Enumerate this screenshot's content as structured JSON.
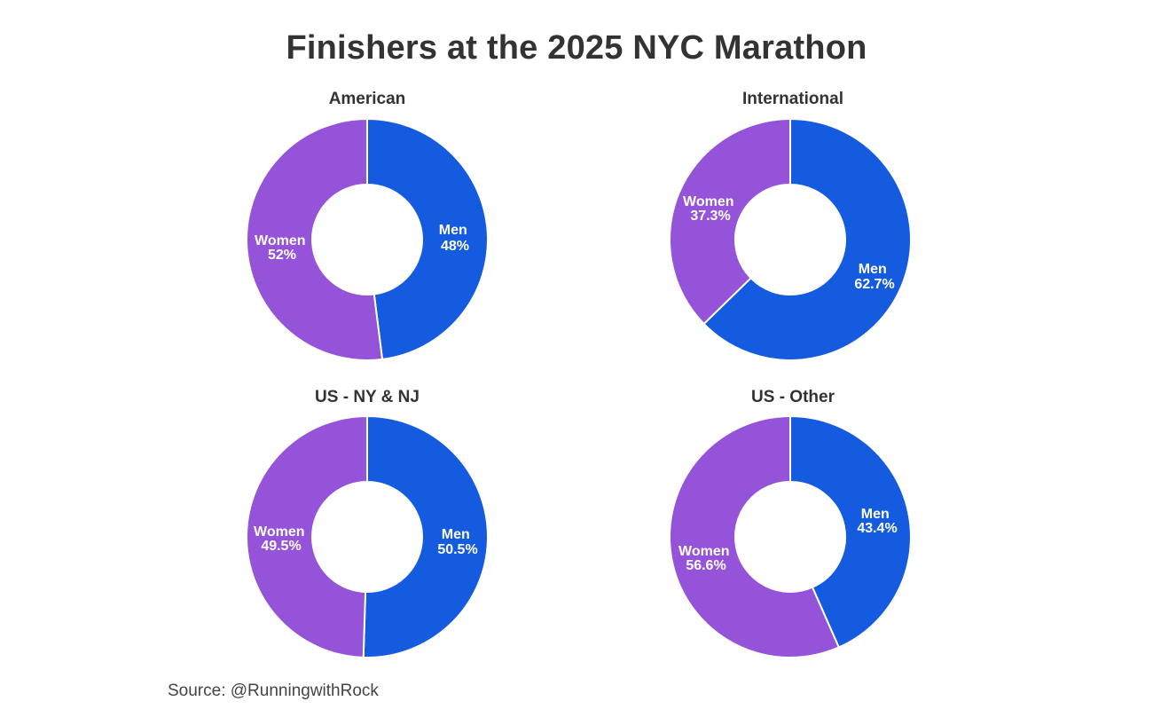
{
  "title": "Finishers at the 2025 NYC Marathon",
  "source": "Source: @RunningwithRock",
  "colors": {
    "men": "#145BE0",
    "women": "#9553D9",
    "text": "#333333",
    "background": "#FFFFFF"
  },
  "chart_data": [
    {
      "type": "pie",
      "variant": "donut",
      "title": "American",
      "categories": [
        "Men",
        "Women"
      ],
      "values": [
        48,
        52
      ],
      "labels": [
        "Men\n48%",
        "Women\n52%"
      ],
      "unit": "%"
    },
    {
      "type": "pie",
      "variant": "donut",
      "title": "International",
      "categories": [
        "Men",
        "Women"
      ],
      "values": [
        62.7,
        37.3
      ],
      "labels": [
        "Men\n62.7%",
        "Women\n37.3%"
      ],
      "unit": "%"
    },
    {
      "type": "pie",
      "variant": "donut",
      "title": "US - NY & NJ",
      "categories": [
        "Men",
        "Women"
      ],
      "values": [
        50.5,
        49.5
      ],
      "labels": [
        "Men\n50.5%",
        "Women\n49.5%"
      ],
      "unit": "%"
    },
    {
      "type": "pie",
      "variant": "donut",
      "title": "US - Other",
      "categories": [
        "Men",
        "Women"
      ],
      "values": [
        43.4,
        56.6
      ],
      "labels": [
        "Men\n43.4%",
        "Women\n56.6%"
      ],
      "unit": "%"
    }
  ],
  "charts": [
    {
      "title": "American",
      "men_label": "Men",
      "men_value": "48%",
      "women_label": "Women",
      "women_value": "52%"
    },
    {
      "title": "International",
      "men_label": "Men",
      "men_value": "62.7%",
      "women_label": "Women",
      "women_value": "37.3%"
    },
    {
      "title": "US - NY & NJ",
      "men_label": "Men",
      "men_value": "50.5%",
      "women_label": "Women",
      "women_value": "49.5%"
    },
    {
      "title": "US - Other",
      "men_label": "Men",
      "men_value": "43.4%",
      "women_label": "Women",
      "women_value": "56.6%"
    }
  ]
}
